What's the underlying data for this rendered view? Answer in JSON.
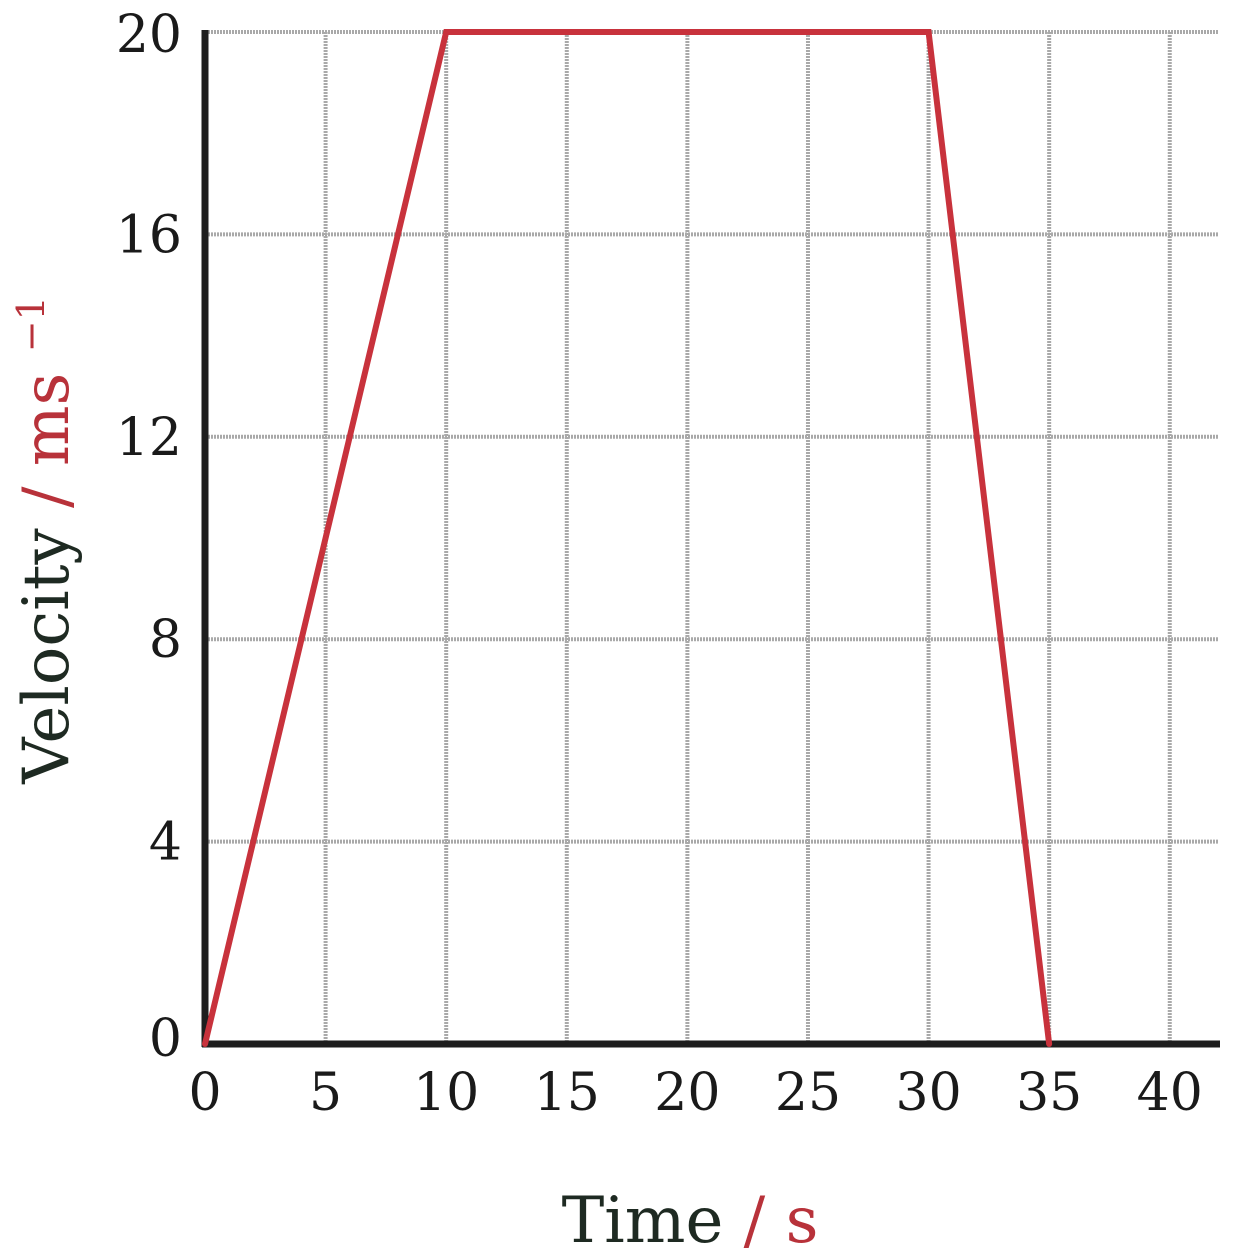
{
  "chart_data": {
    "type": "line",
    "title": "",
    "xlabel": "Time",
    "xlabel_unit": "/ s",
    "ylabel": "Velocity",
    "ylabel_unit": "/ ms",
    "ylabel_unit_exponent": "−1",
    "xlim": [
      0,
      42
    ],
    "ylim": [
      0,
      20
    ],
    "x_ticks": [
      "0",
      "5",
      "10",
      "15",
      "20",
      "25",
      "30",
      "35",
      "40"
    ],
    "y_ticks": [
      "0",
      "4",
      "8",
      "12",
      "16",
      "20"
    ],
    "grid": true,
    "series": [
      {
        "x": [
          0,
          10,
          30,
          35
        ],
        "y": [
          0,
          20,
          20,
          0
        ]
      }
    ],
    "colors": {
      "line": "#c8323c",
      "grid": "#a9a9a9",
      "axis": "#1e1e1e",
      "title_text": "#1e2a22",
      "unit_text": "#b8323a"
    }
  }
}
